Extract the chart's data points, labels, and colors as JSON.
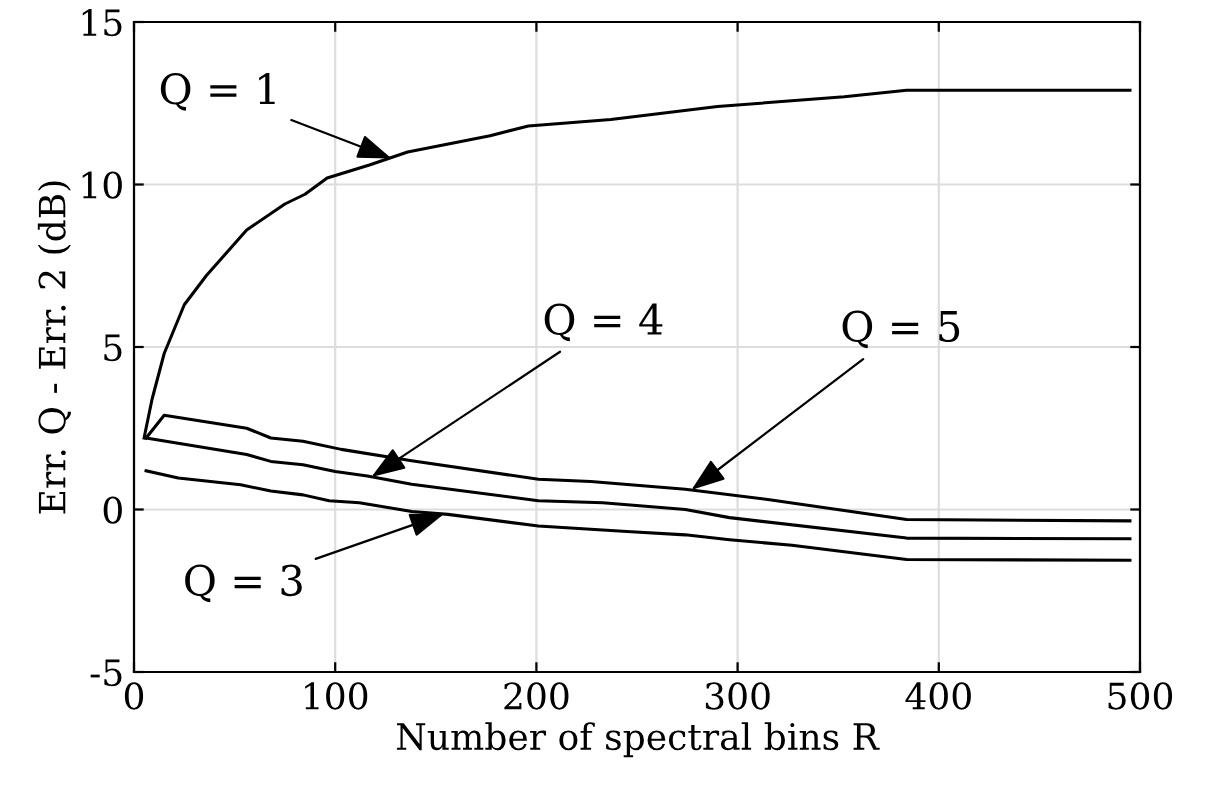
{
  "chart_data": {
    "type": "line",
    "xlabel": "Number of spectral bins R",
    "ylabel": "Err. Q - Err. 2 (dB)",
    "xlim": [
      0,
      500
    ],
    "ylim": [
      -5,
      15
    ],
    "xticks": [
      0,
      100,
      200,
      300,
      400,
      500
    ],
    "yticks": [
      -5,
      0,
      5,
      10,
      15
    ],
    "grid": true,
    "line_style": "solid",
    "series": [
      {
        "color": "#000000",
        "x": [
          5,
          9,
          15,
          25,
          36,
          56,
          75,
          85,
          96,
          117,
          136,
          177,
          196,
          237,
          290,
          353,
          384,
          495
        ],
        "values": [
          2.2,
          3.4,
          4.8,
          6.3,
          7.2,
          8.6,
          9.4,
          9.7,
          10.2,
          10.6,
          11.0,
          11.5,
          11.8,
          12.0,
          12.4,
          12.7,
          12.9,
          12.9
        ]
      },
      {
        "color": "#000000",
        "x": [
          6,
          15,
          56,
          68,
          84,
          103,
          138,
          201,
          227,
          274,
          315,
          384,
          495
        ],
        "values": [
          2.2,
          2.9,
          2.5,
          2.2,
          2.1,
          1.85,
          1.5,
          0.93,
          0.86,
          0.62,
          0.31,
          -0.31,
          -0.35
        ]
      },
      {
        "color": "#000000",
        "x": [
          6,
          56,
          68,
          84,
          100,
          116,
          138,
          201,
          233,
          274,
          296,
          384,
          495
        ],
        "values": [
          2.2,
          1.69,
          1.48,
          1.38,
          1.17,
          1.03,
          0.78,
          0.27,
          0.21,
          0.0,
          -0.25,
          -0.88,
          -0.9
        ]
      },
      {
        "color": "#000000",
        "x": [
          6,
          22,
          53,
          68,
          84,
          97,
          112,
          138,
          156,
          201,
          245,
          274,
          296,
          327,
          384,
          495
        ],
        "values": [
          1.19,
          0.97,
          0.76,
          0.57,
          0.45,
          0.27,
          0.21,
          -0.06,
          -0.15,
          -0.51,
          -0.68,
          -0.78,
          -0.93,
          -1.1,
          -1.54,
          -1.56
        ]
      }
    ],
    "annotations": [
      {
        "text": "Q = 1",
        "x": 128,
        "y": 10.8
      },
      {
        "text": "Q = 4",
        "x": 118,
        "y": 1.0
      },
      {
        "text": "Q = 5",
        "x": 277,
        "y": 0.6
      },
      {
        "text": "Q = 3",
        "x": 154,
        "y": -0.14
      }
    ]
  }
}
